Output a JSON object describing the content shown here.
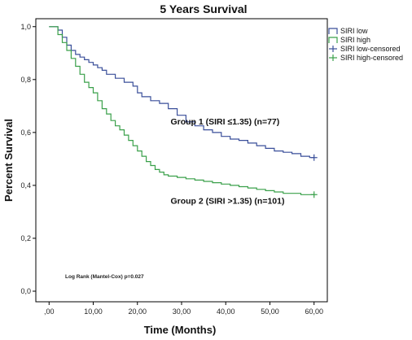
{
  "chart_data": {
    "type": "line",
    "title": "5 Years Survival",
    "xlabel": "Time (Months)",
    "ylabel": "Percent Survival",
    "xlim": [
      -3,
      63
    ],
    "ylim": [
      -0.04,
      1.03
    ],
    "x_ticks": [
      0,
      10,
      20,
      30,
      40,
      50,
      60
    ],
    "x_tick_labels": [
      ",00",
      "10,00",
      "20,00",
      "30,00",
      "40,00",
      "50,00",
      "60,00"
    ],
    "y_ticks": [
      0.0,
      0.2,
      0.4,
      0.6,
      0.8,
      1.0
    ],
    "y_tick_labels": [
      "0,0",
      "0,2",
      "0,4",
      "0,6",
      "0,8",
      "1,0"
    ],
    "grid": false,
    "legend_position": "top-right",
    "legend": [
      {
        "label": "SIRI low",
        "kind": "box",
        "color": "#3a4f9a"
      },
      {
        "label": "SIRI high",
        "kind": "box",
        "color": "#3aa04a"
      },
      {
        "label": "SIRI low-censored",
        "kind": "plus",
        "color": "#3a4f9a"
      },
      {
        "label": "SIRI high-censored",
        "kind": "plus",
        "color": "#3aa04a"
      }
    ],
    "series": [
      {
        "name": "SIRI low",
        "color": "#3a4f9a",
        "step": true,
        "x": [
          0,
          2,
          3,
          4,
          5,
          6,
          7,
          8,
          9,
          10,
          11,
          12,
          13,
          15,
          17,
          19,
          20,
          21,
          23,
          25,
          27,
          29,
          31,
          33,
          35,
          37,
          39,
          41,
          43,
          45,
          47,
          49,
          51,
          53,
          55,
          57,
          59,
          60
        ],
        "y": [
          1.0,
          0.987,
          0.96,
          0.93,
          0.91,
          0.895,
          0.885,
          0.875,
          0.865,
          0.855,
          0.845,
          0.835,
          0.82,
          0.805,
          0.79,
          0.775,
          0.75,
          0.735,
          0.72,
          0.71,
          0.69,
          0.665,
          0.64,
          0.625,
          0.61,
          0.6,
          0.585,
          0.575,
          0.57,
          0.56,
          0.55,
          0.54,
          0.53,
          0.525,
          0.52,
          0.51,
          0.505,
          0.505
        ]
      },
      {
        "name": "SIRI high",
        "color": "#3aa04a",
        "step": true,
        "x": [
          0,
          2,
          3,
          4,
          5,
          6,
          7,
          8,
          9,
          10,
          11,
          12,
          13,
          14,
          15,
          16,
          17,
          18,
          19,
          20,
          21,
          22,
          23,
          24,
          25,
          26,
          27,
          29,
          31,
          33,
          35,
          37,
          39,
          41,
          43,
          45,
          47,
          49,
          51,
          53,
          55,
          57,
          59,
          60
        ],
        "y": [
          1.0,
          0.97,
          0.94,
          0.91,
          0.88,
          0.85,
          0.82,
          0.79,
          0.77,
          0.75,
          0.72,
          0.69,
          0.67,
          0.645,
          0.625,
          0.61,
          0.59,
          0.57,
          0.55,
          0.53,
          0.51,
          0.49,
          0.475,
          0.46,
          0.45,
          0.44,
          0.435,
          0.43,
          0.425,
          0.42,
          0.415,
          0.41,
          0.405,
          0.4,
          0.395,
          0.39,
          0.385,
          0.38,
          0.375,
          0.37,
          0.37,
          0.365,
          0.365,
          0.365
        ]
      }
    ],
    "censored_marks": [
      {
        "series": "SIRI low",
        "x": 60,
        "y": 0.505
      },
      {
        "series": "SIRI high",
        "x": 60,
        "y": 0.365
      }
    ],
    "annotations": [
      {
        "text": "Group 1 (SIRI ≤1.35) (n=77)",
        "x": 27.5,
        "y": 0.63
      },
      {
        "text": "Group 2 (SIRI >1.35) (n=101)",
        "x": 27.5,
        "y": 0.33
      }
    ],
    "footnote": "Log Rank (Mantel-Cox) p=0.027"
  }
}
